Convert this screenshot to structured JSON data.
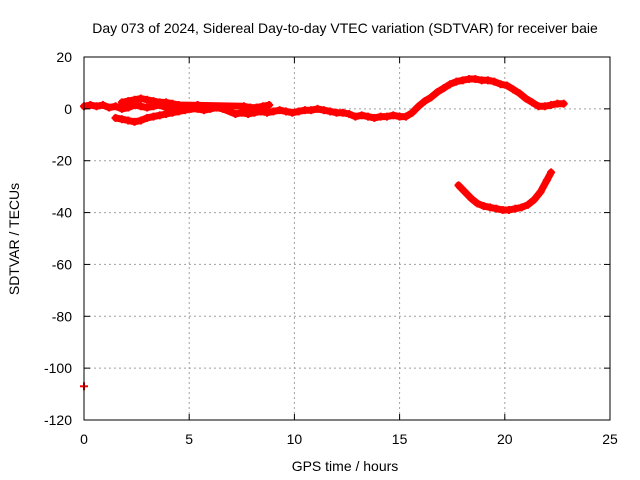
{
  "chart_data": {
    "type": "scatter",
    "title": "Day 073 of 2024, Sidereal Day-to-day VTEC variation (SDTVAR) for receiver baie",
    "xlabel": "GPS time / hours",
    "ylabel": "SDTVAR / TECUs",
    "xlim": [
      0,
      25
    ],
    "ylim": [
      -120,
      20
    ],
    "xticks": [
      0,
      5,
      10,
      15,
      20,
      25
    ],
    "xtick_labels": [
      "0",
      "5",
      "10",
      "15",
      "20",
      "25"
    ],
    "yticks": [
      20,
      0,
      -20,
      -40,
      -60,
      -80,
      -100,
      -120
    ],
    "ytick_labels": [
      "20",
      "0",
      "-20",
      "-40",
      "-60",
      "-80",
      "-100",
      "-120"
    ],
    "grid": true,
    "legend": "none",
    "marker_color": "#ff0000",
    "series": [
      {
        "name": "main-band",
        "x": [
          0.0,
          0.3,
          0.6,
          0.9,
          1.2,
          1.5,
          1.8,
          2.1,
          2.4,
          2.7,
          3.0,
          3.3,
          3.6,
          3.9,
          4.2,
          4.5,
          4.8,
          5.1,
          5.4,
          5.7,
          6.0,
          6.3,
          6.6,
          7.2,
          7.5,
          7.8,
          8.1,
          8.4,
          8.7,
          9.0,
          9.3,
          9.6,
          9.9,
          10.2,
          10.5,
          10.8,
          11.1,
          11.4,
          11.7,
          12.0,
          12.3,
          12.6,
          12.9,
          13.2,
          13.5,
          13.8,
          14.1,
          14.4,
          14.7,
          15.0,
          15.3,
          15.6,
          15.9,
          16.2,
          16.5,
          16.8,
          17.1,
          17.4,
          17.7,
          18.0,
          18.3,
          18.6,
          18.9,
          19.2,
          19.5,
          19.8,
          20.1,
          20.4,
          20.7,
          21.0,
          21.3,
          21.6,
          21.9,
          22.2,
          22.5,
          22.8
        ],
        "y": [
          1.0,
          1.5,
          1.0,
          1.5,
          0.5,
          1.0,
          0.0,
          0.5,
          1.5,
          1.0,
          0.5,
          1.0,
          1.5,
          0.5,
          1.0,
          1.0,
          0.5,
          1.0,
          1.5,
          1.0,
          0.5,
          0.5,
          0.0,
          -2.0,
          -1.5,
          -2.0,
          -1.5,
          -1.0,
          -1.5,
          -1.0,
          -0.5,
          -1.0,
          -1.5,
          -1.0,
          -0.5,
          -0.5,
          0.0,
          -0.5,
          -1.0,
          -1.5,
          -1.5,
          -2.0,
          -3.0,
          -2.5,
          -3.0,
          -3.5,
          -3.0,
          -3.0,
          -2.5,
          -3.0,
          -3.0,
          -1.5,
          1.0,
          3.0,
          4.5,
          6.5,
          8.0,
          9.5,
          10.5,
          11.0,
          11.5,
          11.5,
          11.0,
          11.0,
          10.5,
          9.5,
          9.0,
          7.5,
          6.0,
          4.0,
          2.5,
          1.0,
          1.0,
          1.5,
          2.0,
          2.0
        ]
      },
      {
        "name": "lower-branch",
        "x": [
          1.5,
          1.8,
          2.1,
          2.4,
          2.7,
          3.0,
          3.3,
          3.6,
          3.9,
          4.2,
          4.5,
          4.8,
          5.1,
          5.4,
          5.7,
          6.0,
          6.3
        ],
        "y": [
          -3.5,
          -4.0,
          -4.5,
          -5.0,
          -4.5,
          -3.5,
          -3.0,
          -2.5,
          -2.0,
          -1.5,
          -1.0,
          -0.5,
          0.0,
          0.0,
          -0.5,
          0.0,
          0.5
        ]
      },
      {
        "name": "upper-branch",
        "x": [
          1.8,
          2.1,
          2.4,
          2.7,
          3.0,
          3.3,
          3.6,
          3.9,
          4.2,
          4.5,
          7.6,
          7.9,
          8.2,
          8.5,
          8.8
        ],
        "y": [
          2.5,
          3.0,
          3.5,
          4.0,
          3.5,
          3.0,
          2.5,
          2.5,
          2.0,
          1.5,
          1.0,
          0.5,
          0.5,
          1.0,
          1.5
        ]
      },
      {
        "name": "arc",
        "x": [
          17.8,
          18.1,
          18.4,
          18.7,
          19.0,
          19.3,
          19.6,
          19.9,
          20.2,
          20.5,
          20.8,
          21.1,
          21.4,
          21.7,
          22.0,
          22.2
        ],
        "y": [
          -29.5,
          -32.0,
          -34.5,
          -36.5,
          -37.5,
          -38.0,
          -38.5,
          -39.0,
          -39.0,
          -38.5,
          -38.0,
          -37.0,
          -35.0,
          -32.0,
          -27.5,
          -24.5
        ]
      },
      {
        "name": "outlier",
        "x": [
          0.0
        ],
        "y": [
          -107.0
        ]
      }
    ]
  }
}
